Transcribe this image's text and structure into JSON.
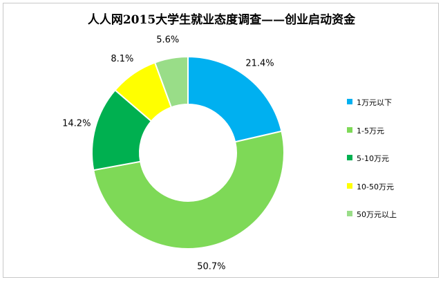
{
  "chart_data": {
    "type": "pie",
    "title": "人人网2015大学生就业态度调查——创业启动资金",
    "categories": [
      "1万元以下",
      "1-5万元",
      "5-10万元",
      "10-50万元",
      "50万元以上"
    ],
    "values": [
      21.4,
      50.7,
      14.2,
      8.1,
      5.6
    ],
    "value_labels": [
      "21.4%",
      "50.7%",
      "14.2%",
      "8.1%",
      "5.6%"
    ],
    "colors": [
      "#00b0f0",
      "#7ed957",
      "#00b050",
      "#ffff00",
      "#99dd88"
    ],
    "donut": true,
    "legend": "right"
  }
}
